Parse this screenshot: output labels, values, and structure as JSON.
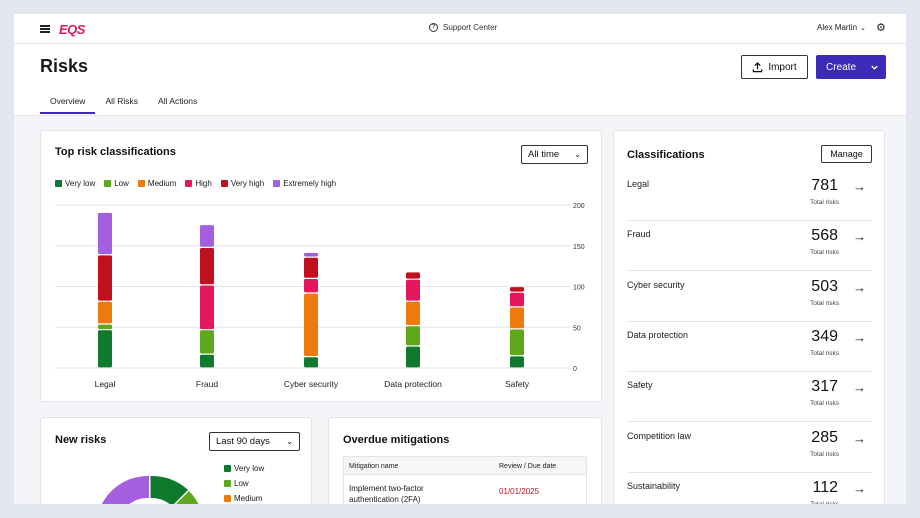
{
  "topbar": {
    "logo": "EQS",
    "support_label": "Support Center",
    "user_name": "Alex Martin"
  },
  "header": {
    "title": "Risks",
    "import_label": "Import",
    "create_label": "Create",
    "tabs": [
      {
        "label": "Overview",
        "active": true
      },
      {
        "label": "All Risks",
        "active": false
      },
      {
        "label": "All Actions",
        "active": false
      }
    ]
  },
  "colors": {
    "accent": "#3b2bb8",
    "very_low": "#0f7a2e",
    "low": "#5ea81e",
    "medium": "#ef7a0c",
    "high": "#e5175c",
    "very_high": "#c0101e",
    "extremely_high": "#a35fe0"
  },
  "top_risk": {
    "title": "Top risk classifications",
    "filter": "All time"
  },
  "chart_data": {
    "type": "bar",
    "stacked": true,
    "title": "Top risk classifications",
    "categories": [
      "Legal",
      "Fraud",
      "Cyber security",
      "Data protection",
      "Safety"
    ],
    "series": [
      {
        "name": "Very low",
        "values": [
          47,
          17,
          14,
          27,
          15
        ]
      },
      {
        "name": "Low",
        "values": [
          7,
          30,
          0,
          25,
          33
        ]
      },
      {
        "name": "Medium",
        "values": [
          28,
          0,
          78,
          30,
          27
        ]
      },
      {
        "name": "High",
        "values": [
          0,
          55,
          18,
          27,
          18
        ]
      },
      {
        "name": "Very high",
        "values": [
          57,
          46,
          26,
          9,
          7
        ]
      },
      {
        "name": "Extremely high",
        "values": [
          52,
          28,
          6,
          0,
          0
        ]
      }
    ],
    "y_ticks": [
      0,
      50,
      100,
      150,
      200
    ],
    "ylim": [
      0,
      200
    ],
    "legend": "top-left",
    "grid": true
  },
  "classifications": {
    "title": "Classifications",
    "manage_label": "Manage",
    "total_label": "Total risks",
    "items": [
      {
        "name": "Legal",
        "count": "781"
      },
      {
        "name": "Fraud",
        "count": "568"
      },
      {
        "name": "Cyber security",
        "count": "503"
      },
      {
        "name": "Data protection",
        "count": "349"
      },
      {
        "name": "Safety",
        "count": "317"
      },
      {
        "name": "Competition law",
        "count": "285"
      },
      {
        "name": "Sustainability",
        "count": "112"
      }
    ]
  },
  "new_risks": {
    "title": "New risks",
    "filter": "Last 90 days",
    "legend": [
      "Very low",
      "Low",
      "Medium"
    ]
  },
  "overdue": {
    "title": "Overdue mitigations",
    "col_name": "Mitigation name",
    "col_date": "Review / Due date",
    "rows": [
      {
        "name": "Implement two-factor authentication (2FA)",
        "date": "01/01/2025"
      }
    ]
  }
}
